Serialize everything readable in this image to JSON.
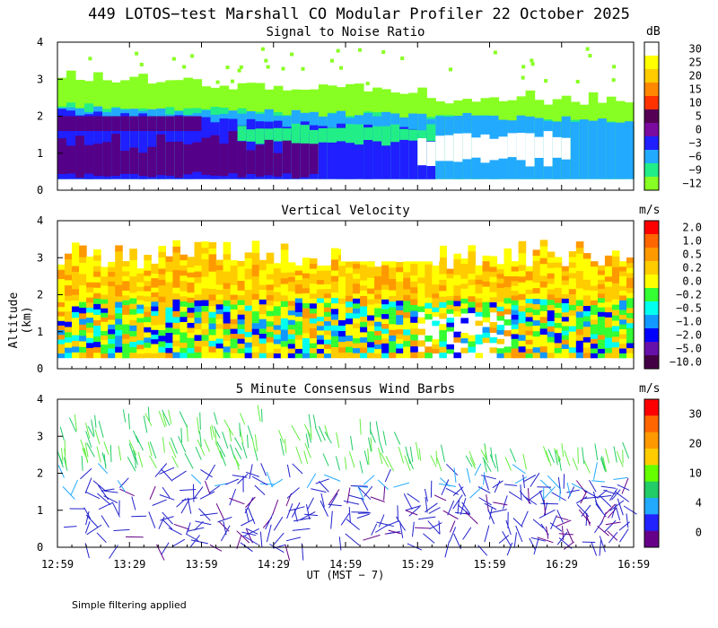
{
  "title": "449 LOTOS−test Marshall CO Modular Profiler 22 October 2025",
  "ylabel": "Altitude (km)",
  "xlabel": "UT  (MST − 7)",
  "note": "Simple filtering applied",
  "chart_data": [
    {
      "type": "heatmap",
      "title": "Signal to Noise Ratio",
      "unit": "dB",
      "x_ticks": [
        "12:59",
        "13:29",
        "13:59",
        "14:29",
        "14:59",
        "15:29",
        "15:59",
        "16:29",
        "16:59"
      ],
      "ylim": [
        0,
        4
      ],
      "y_ticks": [
        "0",
        "1",
        "2",
        "3",
        "4"
      ],
      "colorbar_labels": [
        "30",
        "25",
        "20",
        "15",
        "10",
        "5",
        "0",
        "−3",
        "−6",
        "−9",
        "−12"
      ],
      "colorbar_colors": [
        "#ffffff",
        "#ffff00",
        "#ffcc00",
        "#ff8800",
        "#ff3300",
        "#550055",
        "#7a0aa0",
        "#1f1fff",
        "#22aaff",
        "#22ee88",
        "#88ff22"
      ]
    },
    {
      "type": "heatmap",
      "title": "Vertical Velocity",
      "unit": "m/s",
      "x_ticks": [
        "12:59",
        "13:29",
        "13:59",
        "14:29",
        "14:59",
        "15:29",
        "15:59",
        "16:29",
        "16:59"
      ],
      "ylim": [
        0,
        4
      ],
      "y_ticks": [
        "0",
        "1",
        "2",
        "3",
        "4"
      ],
      "colorbar_labels": [
        "2.0",
        "1.0",
        "0.5",
        "0.2",
        "0.0",
        "−0.2",
        "−0.5",
        "−1.0",
        "−2.0",
        "−5.0",
        "−10.0"
      ],
      "colorbar_colors": [
        "#ff0000",
        "#ff6600",
        "#ff9900",
        "#ffcc00",
        "#ffff00",
        "#33ff33",
        "#00ffee",
        "#1199ff",
        "#0000ff",
        "#6611aa",
        "#440044"
      ]
    },
    {
      "type": "scatter",
      "title": "5 Minute Consensus Wind Barbs",
      "unit": "m/s",
      "x_ticks": [
        "12:59",
        "13:29",
        "13:59",
        "14:29",
        "14:59",
        "15:29",
        "15:59",
        "16:29",
        "16:59"
      ],
      "ylim": [
        0,
        4
      ],
      "y_ticks": [
        "0",
        "1",
        "2",
        "3",
        "4"
      ],
      "colorbar_labels": [
        "30",
        "20",
        "10",
        "4",
        "0"
      ],
      "colorbar_colors": [
        "#ff0000",
        "#ff6600",
        "#ff9900",
        "#ffcc00",
        "#66ff00",
        "#22cc66",
        "#22aaff",
        "#2222ff",
        "#660088"
      ]
    }
  ]
}
